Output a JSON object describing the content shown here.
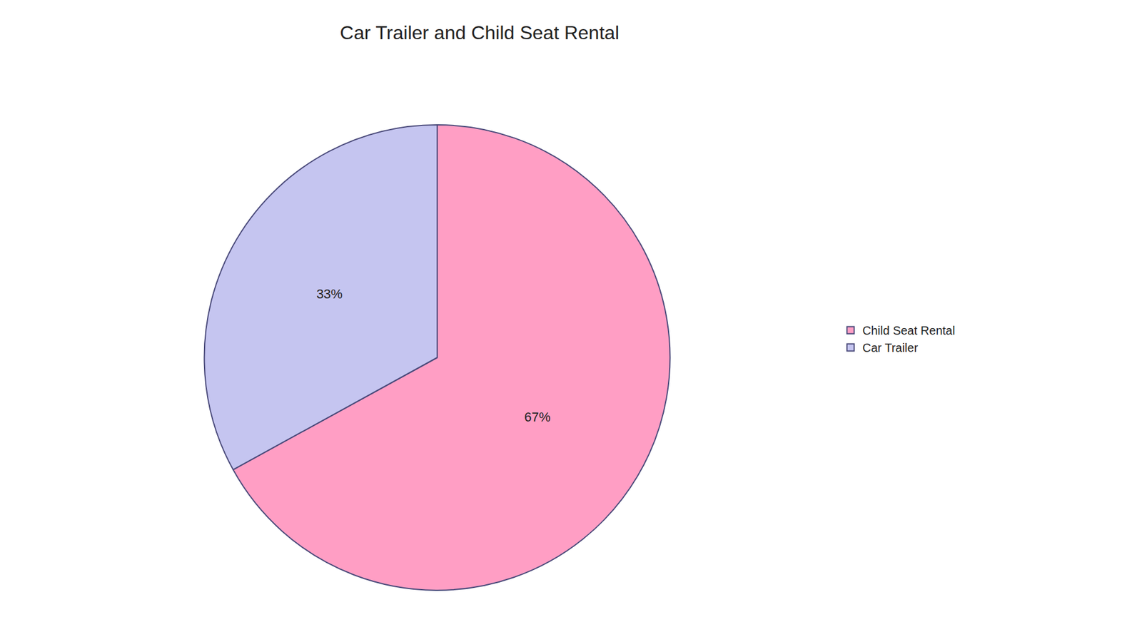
{
  "chart_data": {
    "type": "pie",
    "title": "Car Trailer and Child Seat Rental",
    "categories": [
      "Child Seat Rental",
      "Car Trailer"
    ],
    "values": [
      67,
      33
    ],
    "value_labels": [
      "67%",
      "33%"
    ],
    "colors": [
      "#FF9EC4",
      "#C5C5F0"
    ],
    "data_labels": true,
    "legend": "right"
  }
}
